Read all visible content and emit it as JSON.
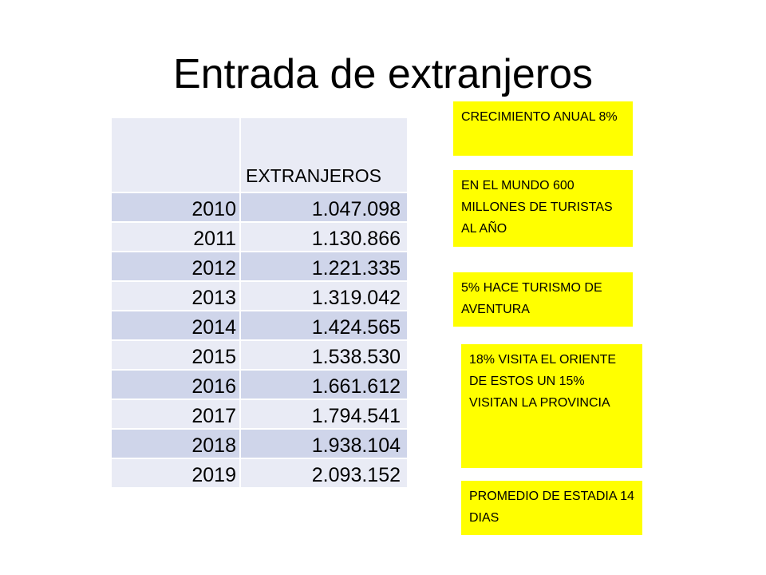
{
  "title": "Entrada de extranjeros",
  "table": {
    "header_year": "",
    "header_value": "EXTRANJEROS",
    "rows": [
      {
        "year": "2010",
        "value": "1.047.098"
      },
      {
        "year": "2011",
        "value": "1.130.866"
      },
      {
        "year": "2012",
        "value": "1.221.335"
      },
      {
        "year": "2013",
        "value": "1.319.042"
      },
      {
        "year": "2014",
        "value": "1.424.565"
      },
      {
        "year": "2015",
        "value": "1.538.530"
      },
      {
        "year": "2016",
        "value": "1.661.612"
      },
      {
        "year": "2017",
        "value": "1.794.541"
      },
      {
        "year": "2018",
        "value": "1.938.104"
      },
      {
        "year": "2019",
        "value": "2.093.152"
      }
    ]
  },
  "notes": [
    "CRECIMIENTO ANUAL 8%",
    "EN EL MUNDO 600 MILLONES DE TURISTAS AL AÑO",
    "5% HACE TURISMO DE AVENTURA",
    "18% VISITA EL ORIENTE DE ESTOS UN 15% VISITAN LA PROVINCIA",
    "PROMEDIO DE ESTADIA 14 DIAS"
  ],
  "colors": {
    "note_background": "#ffff00",
    "table_row_light": "#e9ebf5",
    "table_row_dark": "#cfd5ea"
  }
}
